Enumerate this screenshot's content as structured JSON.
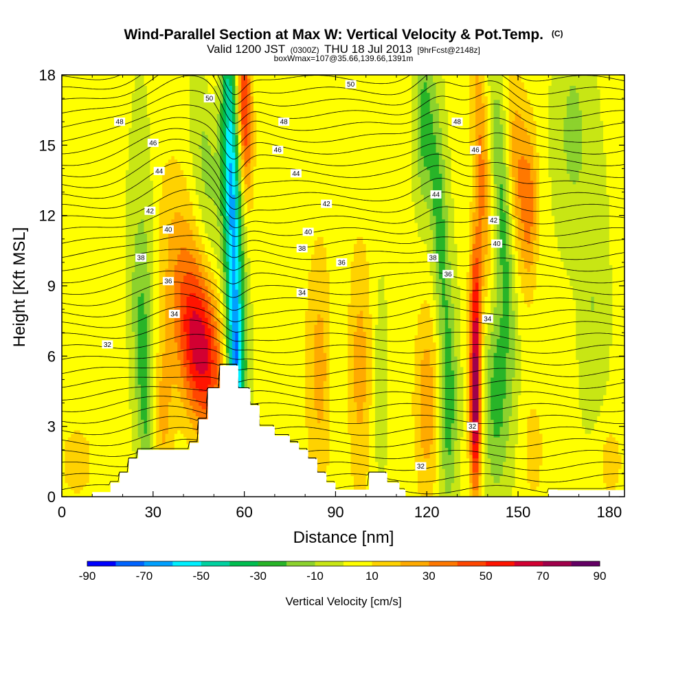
{
  "chart_data": {
    "type": "heatmap",
    "title": "Wind-Parallel Section at Max W: Vertical Velocity & Pot.Temp.",
    "title_mark": "(C)",
    "subtitle_parts": [
      "Valid 1200 JST",
      "(0300Z)",
      "THU 18 Jul 2013",
      "[9hrFcst@2148z]"
    ],
    "subtitle2": "boxWmax=107@35.66,139.66,1391m",
    "xlabel": "Distance [nm]",
    "ylabel": "Height [Kft MSL]",
    "xlim": [
      0,
      185
    ],
    "ylim": [
      0,
      18
    ],
    "xticks": [
      0,
      30,
      60,
      90,
      120,
      150,
      180
    ],
    "yticks": [
      0,
      3,
      6,
      9,
      12,
      15,
      18
    ],
    "grid": false,
    "colorbar": {
      "label": "Vertical Velocity [cm/s]",
      "levels": [
        -90,
        -80,
        -70,
        -60,
        -50,
        -40,
        -30,
        -20,
        -10,
        0,
        10,
        20,
        30,
        40,
        50,
        60,
        70,
        80,
        90
      ],
      "tick_labels": [
        -90,
        -70,
        -50,
        -30,
        -10,
        10,
        30,
        50,
        70,
        90
      ],
      "colors": [
        "#0000ff",
        "#0064ff",
        "#00a0ff",
        "#00f0ff",
        "#00d2a0",
        "#00be50",
        "#28b428",
        "#8cd22d",
        "#c8e614",
        "#ffff00",
        "#ffd200",
        "#ffaa00",
        "#ff7800",
        "#ff4600",
        "#ff1400",
        "#d20032",
        "#a0004b",
        "#640064"
      ],
      "placement": "bottom"
    },
    "terrain": [
      [
        10,
        0.2
      ],
      [
        16,
        0.2
      ],
      [
        16,
        0.6
      ],
      [
        19,
        0.6
      ],
      [
        19,
        1.0
      ],
      [
        22,
        1.0
      ],
      [
        22,
        1.6
      ],
      [
        25,
        1.6
      ],
      [
        25,
        2.0
      ],
      [
        42,
        2.0
      ],
      [
        42,
        2.3
      ],
      [
        45,
        2.3
      ],
      [
        45,
        3.3
      ],
      [
        48,
        3.3
      ],
      [
        48,
        4.6
      ],
      [
        52,
        4.6
      ],
      [
        52,
        5.6
      ],
      [
        58,
        5.6
      ],
      [
        58,
        4.6
      ],
      [
        62,
        4.6
      ],
      [
        62,
        3.9
      ],
      [
        65,
        3.9
      ],
      [
        65,
        3.0
      ],
      [
        70,
        3.0
      ],
      [
        70,
        2.6
      ],
      [
        75,
        2.6
      ],
      [
        75,
        2.3
      ],
      [
        78,
        2.3
      ],
      [
        78,
        2.0
      ],
      [
        81,
        2.0
      ],
      [
        81,
        1.6
      ],
      [
        84,
        1.6
      ],
      [
        84,
        1.0
      ],
      [
        87,
        1.0
      ],
      [
        87,
        0.6
      ],
      [
        90,
        0.6
      ],
      [
        90,
        0.3
      ],
      [
        101,
        0.3
      ],
      [
        101,
        1.0
      ],
      [
        107,
        1.0
      ],
      [
        107,
        0.6
      ],
      [
        111,
        0.6
      ],
      [
        111,
        0.3
      ],
      [
        113,
        0.3
      ],
      [
        113,
        0.0
      ],
      [
        160,
        0.0
      ],
      [
        160,
        0.3
      ],
      [
        163,
        0.3
      ]
    ],
    "wvel_features": [
      {
        "x": 56,
        "z": 12.5,
        "sx": 2.2,
        "sz": 7.5,
        "tilt": -0.2,
        "amp": -65
      },
      {
        "x": 57,
        "z": 5.6,
        "sx": 2.0,
        "sz": 2.0,
        "tilt": 0,
        "amp": -35
      },
      {
        "x": 46,
        "z": 6.2,
        "sx": 5.0,
        "sz": 2.4,
        "tilt": -0.55,
        "amp": 55
      },
      {
        "x": 40,
        "z": 9.5,
        "sx": 6.0,
        "sz": 3.5,
        "tilt": -0.6,
        "amp": 22
      },
      {
        "x": 60,
        "z": 16.5,
        "sx": 1.8,
        "sz": 2.6,
        "tilt": -0.2,
        "amp": 50
      },
      {
        "x": 27,
        "z": 5.0,
        "sx": 2.2,
        "sz": 4.0,
        "tilt": -0.4,
        "amp": -28
      },
      {
        "x": 28,
        "z": 11.0,
        "sx": 2.5,
        "sz": 4.0,
        "tilt": -0.3,
        "amp": -12
      },
      {
        "x": 47,
        "z": 14.5,
        "sx": 3.5,
        "sz": 4.0,
        "tilt": -0.4,
        "amp": -18
      },
      {
        "x": 136,
        "z": 4.2,
        "sx": 1.3,
        "sz": 2.8,
        "tilt": 0,
        "amp": 80
      },
      {
        "x": 136,
        "z": 9.0,
        "sx": 1.4,
        "sz": 2.0,
        "tilt": 0,
        "amp": 30
      },
      {
        "x": 143,
        "z": 4.5,
        "sx": 3.0,
        "sz": 3.0,
        "tilt": 0,
        "amp": -28
      },
      {
        "x": 127,
        "z": 4.0,
        "sx": 2.0,
        "sz": 3.0,
        "tilt": 0,
        "amp": -30
      },
      {
        "x": 120,
        "z": 4.0,
        "sx": 3.0,
        "sz": 3.0,
        "tilt": 0,
        "amp": 25
      },
      {
        "x": 85,
        "z": 5.5,
        "sx": 3.5,
        "sz": 4.0,
        "tilt": 0,
        "amp": 22
      },
      {
        "x": 98,
        "z": 5.5,
        "sx": 3.5,
        "sz": 4.0,
        "tilt": 0,
        "amp": 22
      },
      {
        "x": 91,
        "z": 5.5,
        "sx": 2.5,
        "sz": 4.0,
        "tilt": 0,
        "amp": -10
      },
      {
        "x": 104,
        "z": 5.0,
        "sx": 2.0,
        "sz": 3.5,
        "tilt": 0,
        "amp": -10
      },
      {
        "x": 124,
        "z": 12.0,
        "sx": 2.0,
        "sz": 3.5,
        "tilt": -0.3,
        "amp": -28
      },
      {
        "x": 119,
        "z": 16.0,
        "sx": 2.0,
        "sz": 2.5,
        "tilt": 0,
        "amp": -25
      },
      {
        "x": 138,
        "z": 14.0,
        "sx": 2.0,
        "sz": 4.0,
        "tilt": -0.3,
        "amp": 30
      },
      {
        "x": 145,
        "z": 12.0,
        "sx": 2.0,
        "sz": 4.5,
        "tilt": -0.4,
        "amp": -25
      },
      {
        "x": 150,
        "z": 14.0,
        "sx": 2.5,
        "sz": 3.0,
        "tilt": -0.3,
        "amp": 25
      },
      {
        "x": 154,
        "z": 12.5,
        "sx": 2.0,
        "sz": 2.5,
        "tilt": 0,
        "amp": 25
      },
      {
        "x": 168,
        "z": 15.5,
        "sx": 4.0,
        "sz": 3.0,
        "tilt": 0,
        "amp": -15
      },
      {
        "x": 175,
        "z": 8.0,
        "sx": 3.0,
        "sz": 4.0,
        "tilt": 0,
        "amp": -12
      },
      {
        "x": 5,
        "z": 1.5,
        "sx": 5.0,
        "sz": 1.5,
        "tilt": 0,
        "amp": 12
      },
      {
        "x": 180,
        "z": 1.5,
        "sx": 4.0,
        "sz": 1.5,
        "tilt": 0,
        "amp": 12
      },
      {
        "x": 155,
        "z": 2.0,
        "sx": 3.0,
        "sz": 2.0,
        "tilt": 0,
        "amp": 12
      },
      {
        "x": 33,
        "z": 3.5,
        "sx": 2.5,
        "sz": 2.5,
        "tilt": 0,
        "amp": 22
      },
      {
        "x": 50,
        "z": 18.0,
        "sx": 6.0,
        "sz": 2.0,
        "tilt": 0,
        "amp": 10
      }
    ],
    "contour_labels": [
      {
        "text": "50",
        "x": 48.5,
        "z": 17.0
      },
      {
        "text": "50",
        "x": 95,
        "z": 17.6
      },
      {
        "text": "48",
        "x": 19,
        "z": 16.0
      },
      {
        "text": "48",
        "x": 73,
        "z": 16.0
      },
      {
        "text": "48",
        "x": 130,
        "z": 16.0
      },
      {
        "text": "46",
        "x": 30,
        "z": 15.1
      },
      {
        "text": "46",
        "x": 71,
        "z": 14.8
      },
      {
        "text": "46",
        "x": 136,
        "z": 14.8
      },
      {
        "text": "44",
        "x": 32,
        "z": 13.9
      },
      {
        "text": "44",
        "x": 77,
        "z": 13.8
      },
      {
        "text": "44",
        "x": 123,
        "z": 12.9
      },
      {
        "text": "42",
        "x": 29,
        "z": 12.2
      },
      {
        "text": "42",
        "x": 87,
        "z": 12.5
      },
      {
        "text": "42",
        "x": 142,
        "z": 11.8
      },
      {
        "text": "40",
        "x": 35,
        "z": 11.4
      },
      {
        "text": "40",
        "x": 81,
        "z": 11.3
      },
      {
        "text": "40",
        "x": 143,
        "z": 10.8
      },
      {
        "text": "38",
        "x": 26,
        "z": 10.2
      },
      {
        "text": "38",
        "x": 79,
        "z": 10.6
      },
      {
        "text": "38",
        "x": 122,
        "z": 10.2
      },
      {
        "text": "36",
        "x": 35,
        "z": 9.2
      },
      {
        "text": "36",
        "x": 92,
        "z": 10.0
      },
      {
        "text": "36",
        "x": 127,
        "z": 9.5
      },
      {
        "text": "34",
        "x": 37,
        "z": 7.8
      },
      {
        "text": "34",
        "x": 79,
        "z": 8.7
      },
      {
        "text": "34",
        "x": 140,
        "z": 7.6
      },
      {
        "text": "32",
        "x": 15,
        "z": 6.5
      },
      {
        "text": "32",
        "x": 135,
        "z": 3.0
      },
      {
        "text": "32",
        "x": 118,
        "z": 1.3
      }
    ]
  }
}
